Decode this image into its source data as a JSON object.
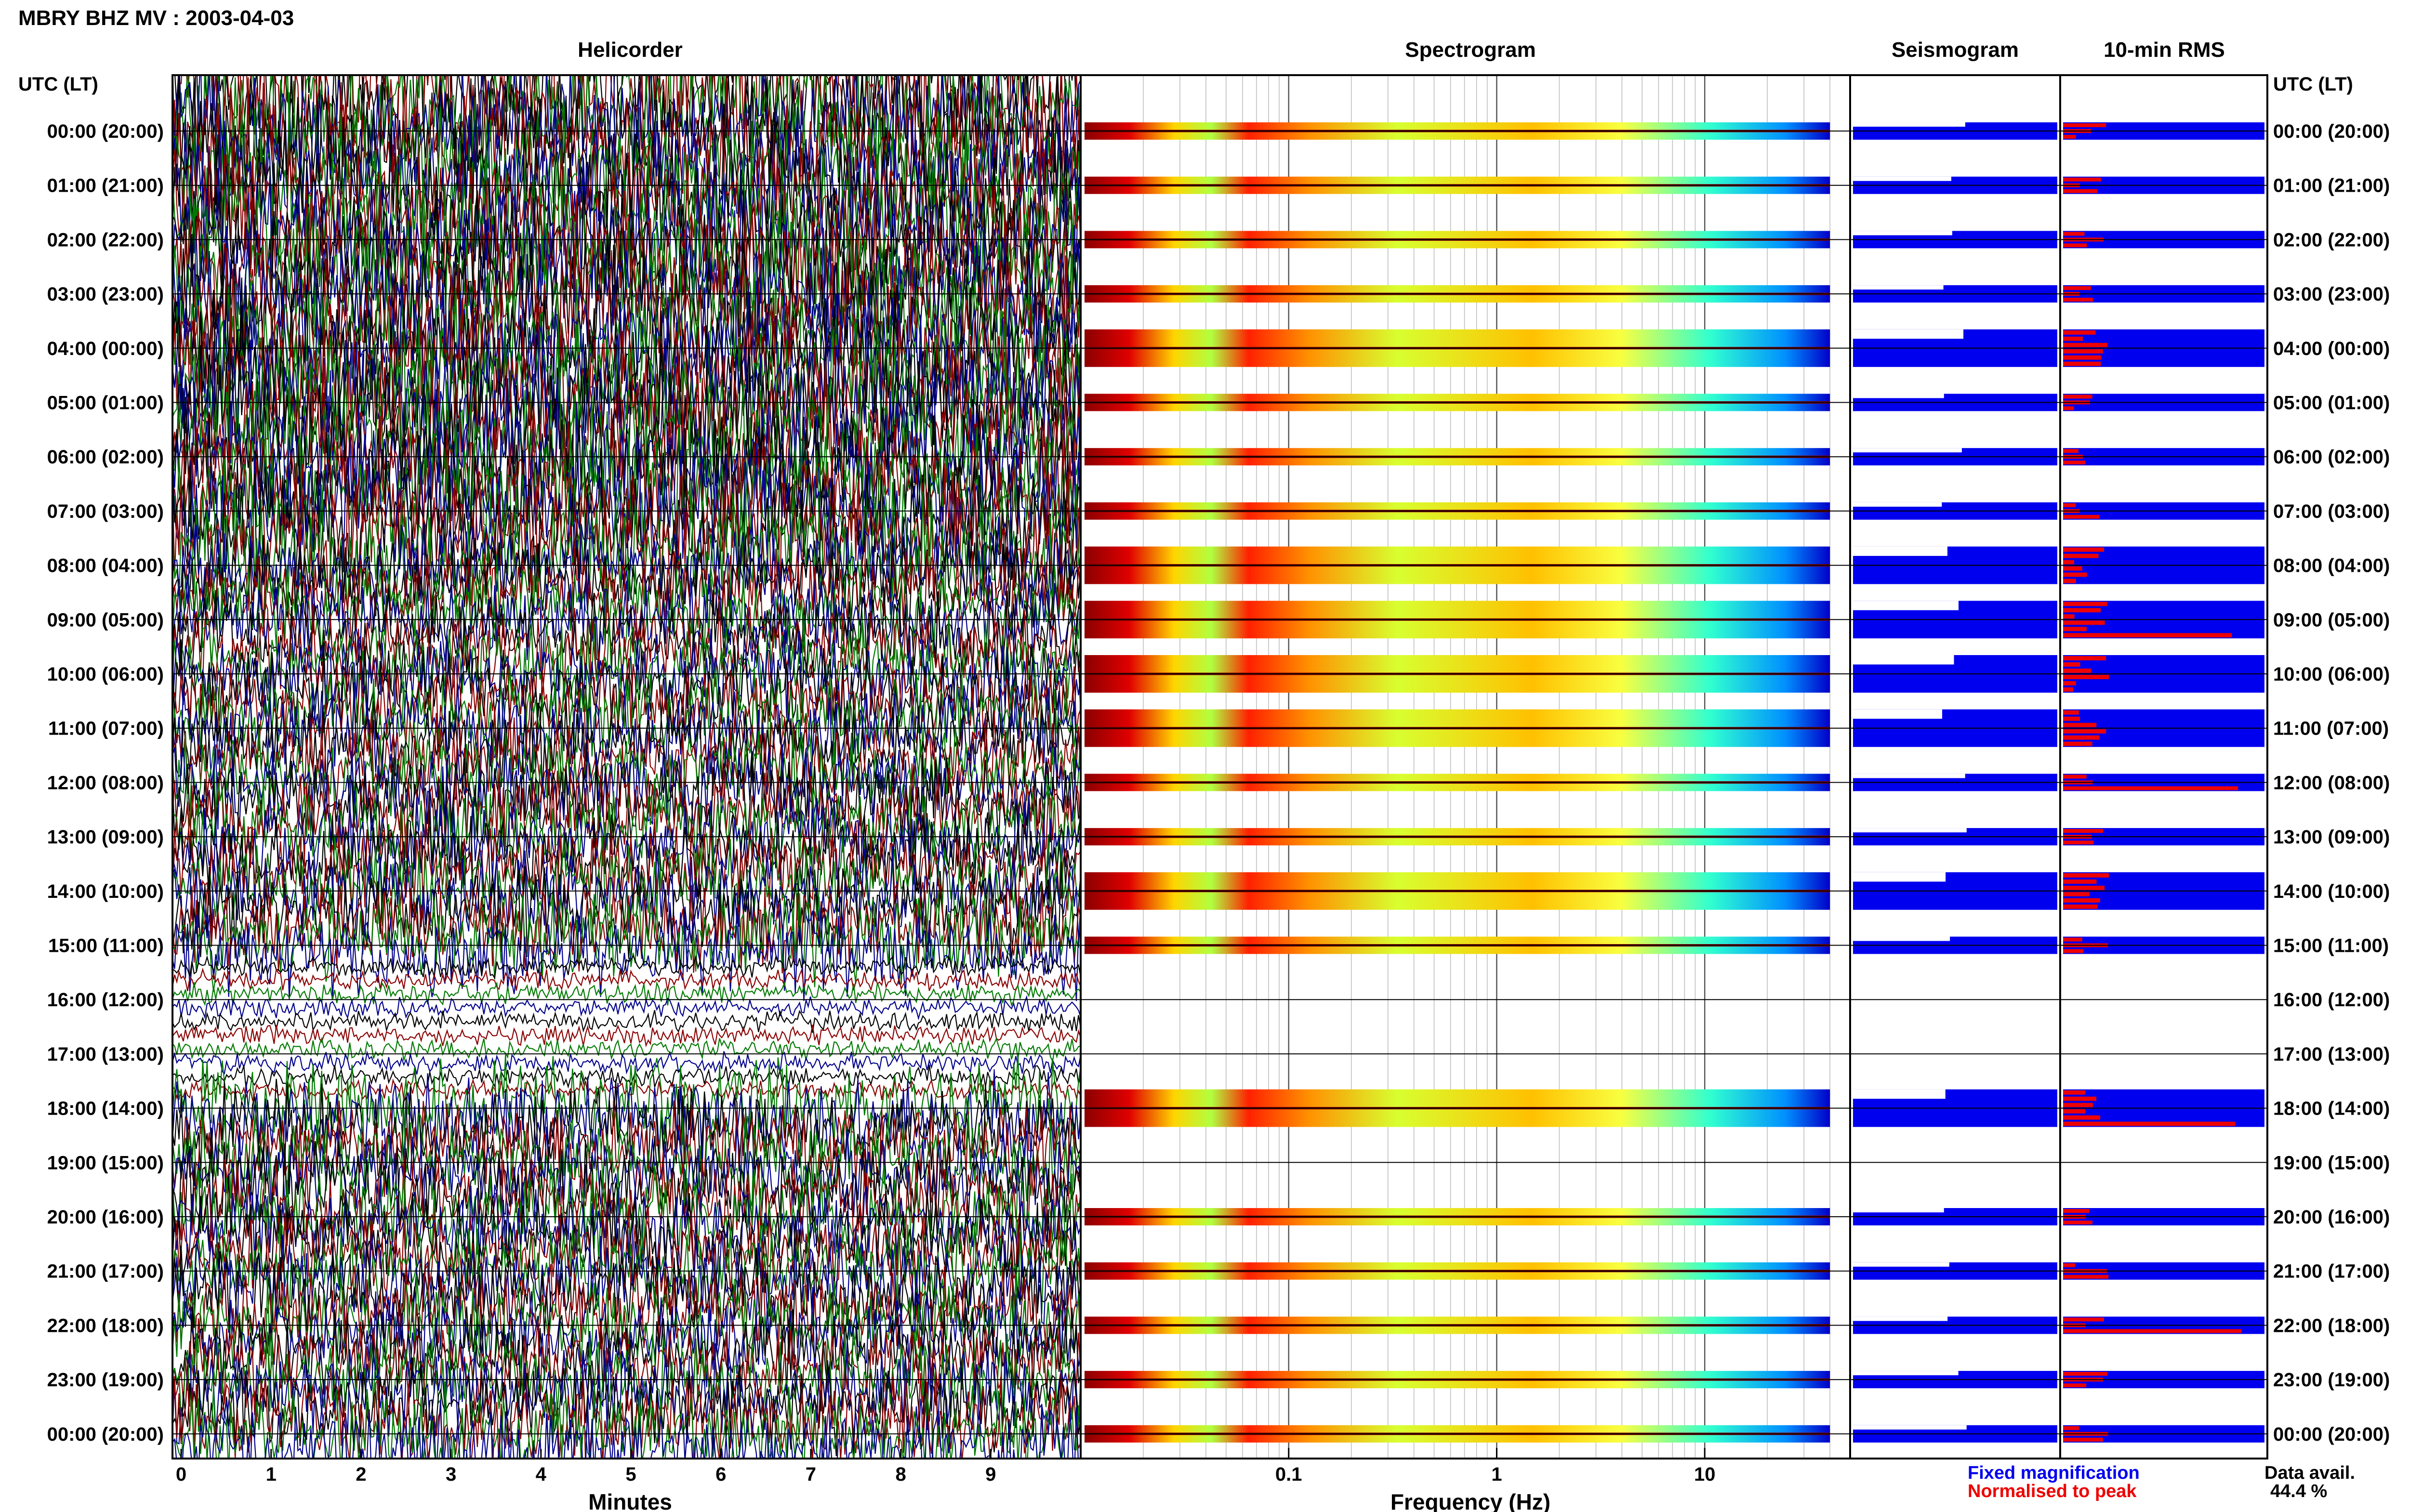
{
  "header": {
    "title": "MBRY BHZ MV : 2003-04-03",
    "utc_label_left": "UTC (LT)",
    "utc_label_right": "UTC (LT)"
  },
  "panels": {
    "helicorder": "Helicorder",
    "spectrogram": "Spectrogram",
    "seismogram": "Seismogram",
    "rms": "10-min RMS"
  },
  "legend": {
    "fixed": "Fixed magnification",
    "normalised": "Normalised to peak",
    "data_avail_label": "Data avail.",
    "data_avail_value": "44.4 %"
  },
  "colors": {
    "fixed": "#0000ee",
    "normalised": "#ee0000",
    "trace_black": "#000000",
    "trace_red": "#8b0000",
    "trace_green": "#007a00",
    "trace_blue": "#00008b",
    "frame": "#000000",
    "grid": "#999999"
  },
  "chart_data": [
    {
      "type": "line",
      "title": "Helicorder",
      "xlabel": "Minutes",
      "xlim": [
        0,
        10
      ],
      "x_ticks": [
        0,
        1,
        2,
        3,
        4,
        5,
        6,
        7,
        8,
        9
      ],
      "ylabel": "UTC (LT)",
      "row_labels": [
        "00:00 (20:00)",
        "01:00 (21:00)",
        "02:00 (22:00)",
        "03:00 (23:00)",
        "04:00 (00:00)",
        "05:00 (01:00)",
        "06:00 (02:00)",
        "07:00 (03:00)",
        "08:00 (04:00)",
        "09:00 (05:00)",
        "10:00 (06:00)",
        "11:00 (07:00)",
        "12:00 (08:00)",
        "13:00 (09:00)",
        "14:00 (10:00)",
        "15:00 (11:00)",
        "16:00 (12:00)",
        "17:00 (13:00)",
        "18:00 (14:00)",
        "19:00 (15:00)",
        "20:00 (16:00)",
        "21:00 (17:00)",
        "22:00 (18:00)",
        "23:00 (19:00)",
        "00:00 (20:00)"
      ],
      "trace_colors": [
        "#000000",
        "#8b0000",
        "#007a00",
        "#00008b"
      ]
    },
    {
      "type": "heatmap",
      "title": "Spectrogram",
      "xlabel": "Frequency (Hz)",
      "x_scale": "log",
      "xlim": [
        0.01,
        50
      ],
      "x_tick_labels": [
        "0.1",
        "1",
        "10"
      ],
      "x_tick_values": [
        0.1,
        1,
        10
      ],
      "colormap": "jet",
      "data_hours": [
        0,
        1,
        2,
        3,
        4,
        5,
        6,
        7,
        8,
        9,
        10,
        11,
        12,
        13,
        14,
        15,
        18,
        20,
        21,
        22,
        23,
        24
      ]
    },
    {
      "type": "bar",
      "title": "Seismogram",
      "color": "#0000ee",
      "data_hours": [
        0,
        1,
        2,
        3,
        4,
        5,
        6,
        7,
        8,
        9,
        10,
        11,
        12,
        13,
        14,
        15,
        18,
        20,
        21,
        22,
        23,
        24
      ]
    },
    {
      "type": "bar",
      "title": "10-min RMS",
      "series": [
        {
          "name": "Fixed magnification",
          "color": "#0000ee"
        },
        {
          "name": "Normalised to peak",
          "color": "#ee0000"
        }
      ],
      "data_hours": [
        0,
        1,
        2,
        3,
        4,
        5,
        6,
        7,
        8,
        9,
        10,
        11,
        12,
        13,
        14,
        15,
        18,
        20,
        21,
        22,
        23,
        24
      ]
    }
  ]
}
